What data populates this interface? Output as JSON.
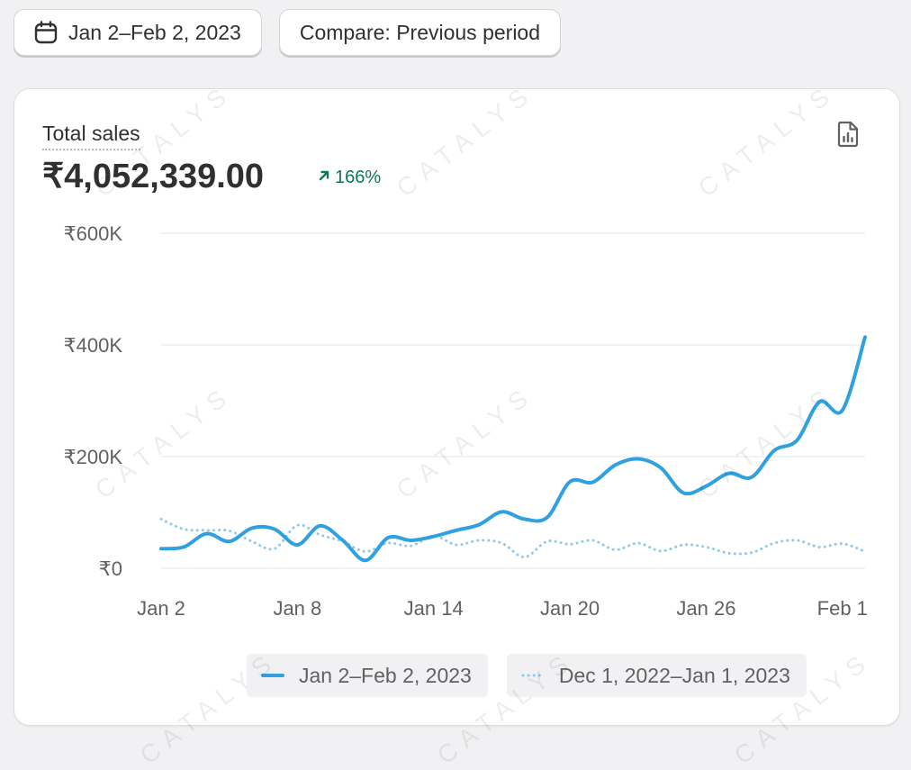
{
  "toolbar": {
    "date_range_label": "Jan 2–Feb 2, 2023",
    "compare_label": "Compare: Previous period"
  },
  "metric": {
    "title": "Total sales",
    "value": "₹4,052,339.00",
    "change": "166%"
  },
  "watermark": "CATALYS",
  "colors": {
    "current": "#2fa0e0",
    "previous": "#8fcaea",
    "positive": "#0a7a55",
    "grid": "#e9e9ee",
    "axis_text": "#616161"
  },
  "chart_data": {
    "type": "line",
    "y_ticks": [
      0,
      200000,
      400000,
      600000
    ],
    "y_tick_labels": [
      "₹0",
      "₹200K",
      "₹400K",
      "₹600K"
    ],
    "ylim": [
      0,
      600000
    ],
    "x_ticks": [
      0,
      6,
      12,
      18,
      24,
      30
    ],
    "x_tick_labels": [
      "Jan 2",
      "Jan 8",
      "Jan 14",
      "Jan 20",
      "Jan 26",
      "Feb 1"
    ],
    "xlim": [
      0,
      31
    ],
    "grid": true,
    "legend_position": "bottom",
    "series": [
      {
        "name": "Jan 2–Feb 2, 2023",
        "style": "solid",
        "values": [
          35000,
          38000,
          62000,
          48000,
          72000,
          70000,
          42000,
          76000,
          50000,
          14000,
          55000,
          50000,
          57000,
          68000,
          78000,
          101000,
          88000,
          91000,
          155000,
          154000,
          185000,
          196000,
          180000,
          135000,
          147000,
          170000,
          163000,
          211000,
          229000,
          298000,
          283000,
          414000
        ]
      },
      {
        "name": "Dec 1, 2022–Jan 1, 2023",
        "style": "dotted",
        "values": [
          88000,
          70000,
          68000,
          67000,
          48000,
          35000,
          77000,
          60000,
          48000,
          30000,
          45000,
          40000,
          58000,
          42000,
          50000,
          45000,
          20000,
          48000,
          43000,
          50000,
          33000,
          45000,
          31000,
          42000,
          38000,
          27000,
          28000,
          45000,
          50000,
          38000,
          44000,
          30000
        ]
      }
    ]
  }
}
